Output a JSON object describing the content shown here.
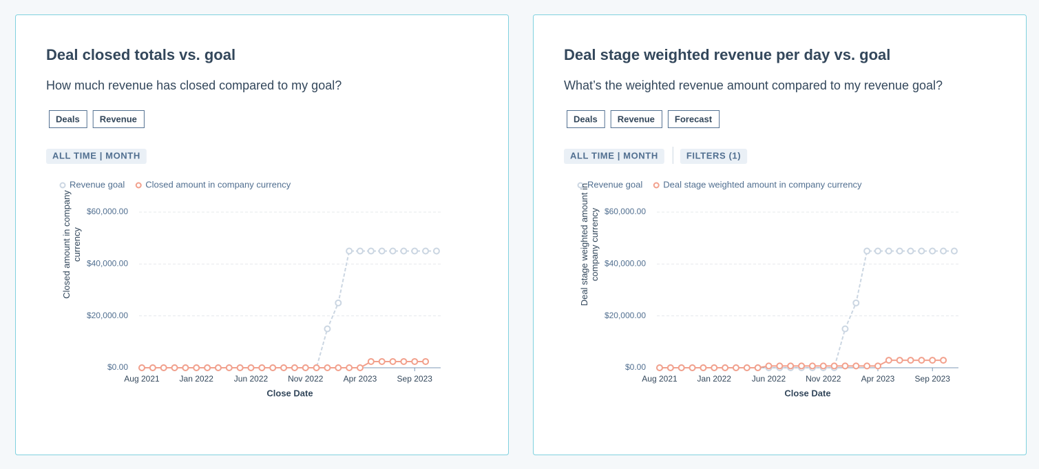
{
  "chart_data": [
    {
      "type": "line",
      "title": "Deal closed totals vs. goal",
      "subtitle": "How much revenue has closed compared to my goal?",
      "tags": [
        "Deals",
        "Revenue"
      ],
      "filters": [
        "ALL TIME | MONTH"
      ],
      "x_label": "Close Date",
      "y_label": "Closed amount in company currency",
      "categories": [
        "Aug 2021",
        null,
        null,
        null,
        null,
        "Jan 2022",
        null,
        null,
        null,
        null,
        "Jun 2022",
        null,
        null,
        null,
        null,
        "Nov 2022",
        null,
        null,
        null,
        null,
        "Apr 2023",
        null,
        null,
        null,
        null,
        "Sep 2023",
        null,
        null
      ],
      "series": [
        {
          "name": "Revenue goal",
          "color": "#cbd6e2",
          "line_style": "dashed",
          "values": [
            0,
            0,
            0,
            0,
            0,
            0,
            0,
            0,
            0,
            0,
            0,
            0,
            0,
            0,
            0,
            0,
            0,
            15000,
            25000,
            45000,
            45000,
            45000,
            45000,
            45000,
            45000,
            45000,
            45000,
            45000
          ]
        },
        {
          "name": "Closed amount in company currency",
          "color": "#f2a08c",
          "line_style": "solid",
          "values": [
            0,
            0,
            0,
            0,
            0,
            0,
            0,
            0,
            0,
            0,
            0,
            0,
            0,
            0,
            0,
            0,
            0,
            0,
            0,
            0,
            0,
            2400,
            2400,
            2400,
            2400,
            2400,
            2400,
            null
          ]
        }
      ],
      "ylim": [
        0,
        60000
      ],
      "yticks": [
        {
          "value": 0,
          "label": "$0.00"
        },
        {
          "value": 20000,
          "label": "$20,000.00"
        },
        {
          "value": 40000,
          "label": "$40,000.00"
        },
        {
          "value": 60000,
          "label": "$60,000.00"
        }
      ],
      "grid": true
    },
    {
      "type": "line",
      "title": "Deal stage weighted revenue per day vs. goal",
      "subtitle": "What’s the weighted revenue amount compared to my revenue goal?",
      "tags": [
        "Deals",
        "Revenue",
        "Forecast"
      ],
      "filters": [
        "ALL TIME | MONTH",
        "FILTERS (1)"
      ],
      "x_label": "Close Date",
      "y_label": "Deal stage weighted amount in company currency",
      "categories": [
        "Aug 2021",
        null,
        null,
        null,
        null,
        "Jan 2022",
        null,
        null,
        null,
        null,
        "Jun 2022",
        null,
        null,
        null,
        null,
        "Nov 2022",
        null,
        null,
        null,
        null,
        "Apr 2023",
        null,
        null,
        null,
        null,
        "Sep 2023",
        null,
        null
      ],
      "series": [
        {
          "name": "Revenue goal",
          "color": "#cbd6e2",
          "line_style": "dashed",
          "values": [
            0,
            0,
            0,
            0,
            0,
            0,
            0,
            0,
            0,
            0,
            0,
            0,
            0,
            0,
            0,
            0,
            0,
            15000,
            25000,
            45000,
            45000,
            45000,
            45000,
            45000,
            45000,
            45000,
            45000,
            45000
          ]
        },
        {
          "name": "Deal stage weighted amount in company currency",
          "color": "#f2a08c",
          "line_style": "solid",
          "values": [
            0,
            0,
            0,
            0,
            0,
            0,
            0,
            0,
            0,
            0,
            700,
            700,
            700,
            700,
            700,
            700,
            700,
            700,
            700,
            700,
            700,
            2900,
            2900,
            2900,
            2900,
            2900,
            2900,
            null
          ]
        }
      ],
      "ylim": [
        0,
        60000
      ],
      "yticks": [
        {
          "value": 0,
          "label": "$0.00"
        },
        {
          "value": 20000,
          "label": "$20,000.00"
        },
        {
          "value": 40000,
          "label": "$40,000.00"
        },
        {
          "value": 60000,
          "label": "$60,000.00"
        }
      ],
      "grid": true
    }
  ]
}
